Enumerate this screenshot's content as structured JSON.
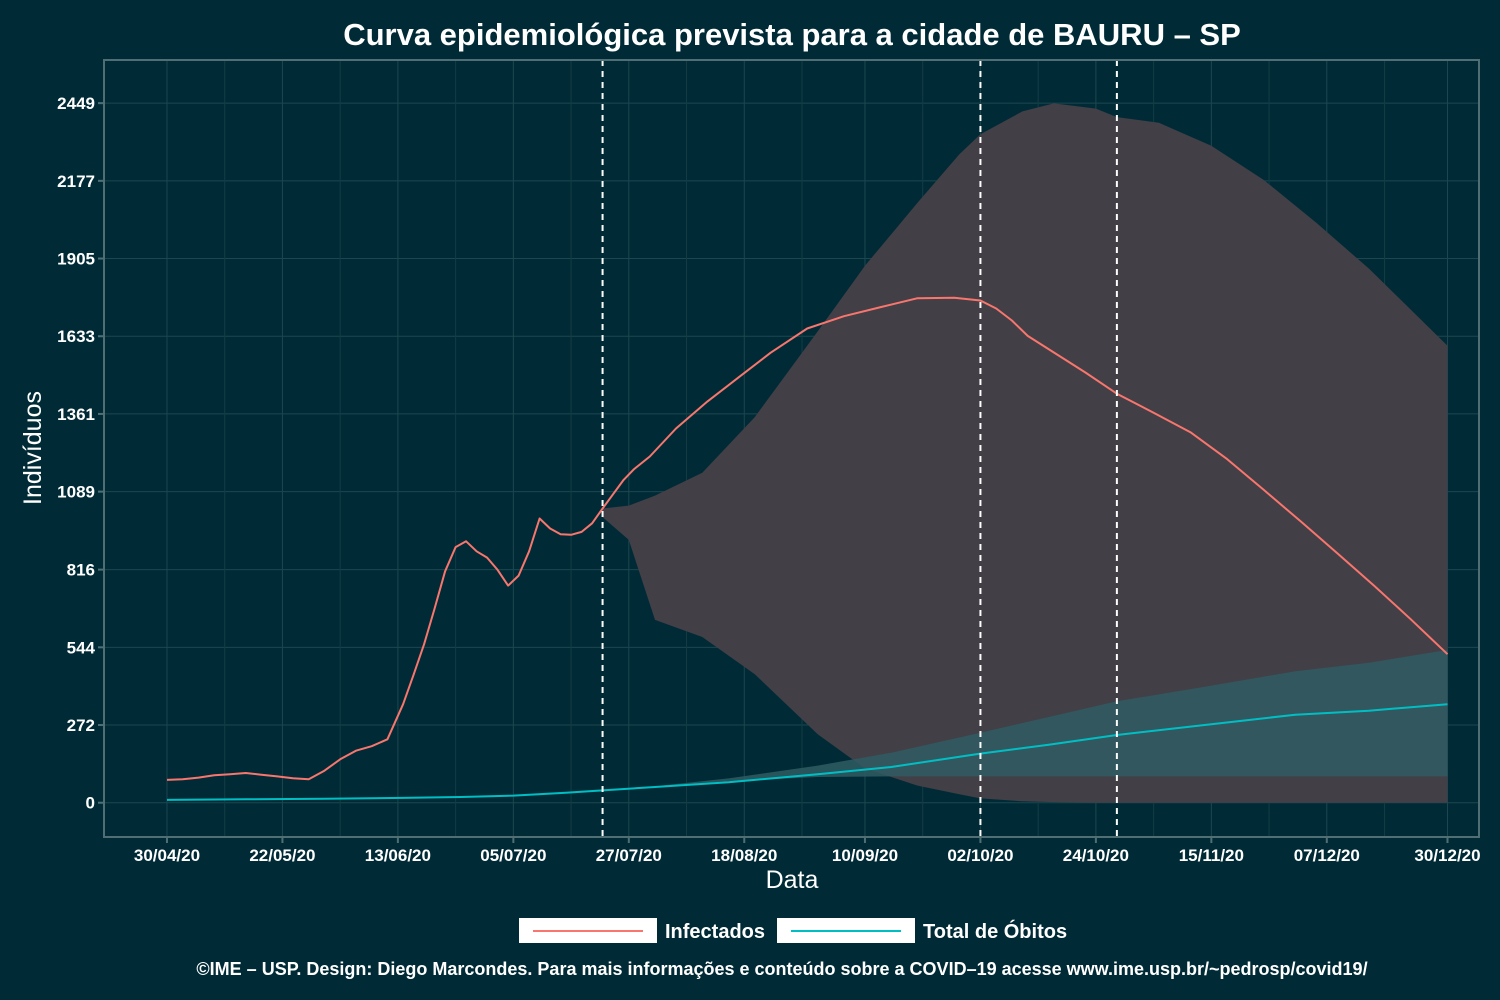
{
  "chart_data": {
    "type": "line",
    "title": "Curva epidemiológica prevista para a cidade de BAURU – SP",
    "xlabel": "Data",
    "ylabel": "Indivíduos",
    "x_start": "2020-04-30",
    "x_range": [
      "2020-04-18",
      "2021-01-05"
    ],
    "ylim": [
      -120,
      2600
    ],
    "y_ticks": [
      0,
      272,
      544,
      816,
      1089,
      1361,
      1633,
      1905,
      2177,
      2449
    ],
    "y_tick_labels": [
      "0",
      "272",
      "544",
      "816",
      "1089",
      "1361",
      "1633",
      "1905",
      "2177",
      "2449"
    ],
    "x_ticks": [
      "2020-04-30",
      "2020-05-22",
      "2020-06-13",
      "2020-07-05",
      "2020-07-27",
      "2020-08-18",
      "2020-09-10",
      "2020-10-02",
      "2020-10-24",
      "2020-11-15",
      "2020-12-07",
      "2020-12-30"
    ],
    "x_tick_labels": [
      "30/04/20",
      "22/05/20",
      "13/06/20",
      "05/07/20",
      "27/07/20",
      "18/08/20",
      "10/09/20",
      "02/10/20",
      "24/10/20",
      "15/11/20",
      "07/12/20",
      "30/12/20"
    ],
    "vlines": [
      "2020-07-22",
      "2020-10-02",
      "2020-10-28"
    ],
    "grid": true,
    "legend_position": "bottom",
    "legend": [
      "Infectados",
      "Total de Óbitos"
    ],
    "caption": "©IME – USP. Design: Diego Marcondes. Para mais informações e conteúdo sobre a COVID–19 acesse www.ime.usp.br/~pedrosp/covid19/",
    "colors": {
      "background": "#002b36",
      "infectados": "#f8766d",
      "obitos": "#00bfc4",
      "band_infectados": "#423f47",
      "band_obitos": "#2f5c63",
      "vline": "#ffffff"
    },
    "series": [
      {
        "name": "Infectados",
        "x": [
          "2020-04-30",
          "2020-05-03",
          "2020-05-06",
          "2020-05-09",
          "2020-05-12",
          "2020-05-15",
          "2020-05-18",
          "2020-05-21",
          "2020-05-24",
          "2020-05-27",
          "2020-05-30",
          "2020-06-02",
          "2020-06-05",
          "2020-06-08",
          "2020-06-11",
          "2020-06-14",
          "2020-06-16",
          "2020-06-18",
          "2020-06-20",
          "2020-06-22",
          "2020-06-24",
          "2020-06-26",
          "2020-06-28",
          "2020-06-30",
          "2020-07-02",
          "2020-07-04",
          "2020-07-06",
          "2020-07-08",
          "2020-07-10",
          "2020-07-12",
          "2020-07-14",
          "2020-07-16",
          "2020-07-18",
          "2020-07-20",
          "2020-07-22",
          "2020-07-24",
          "2020-07-26",
          "2020-07-28",
          "2020-07-31",
          "2020-08-05",
          "2020-08-11",
          "2020-08-17",
          "2020-08-23",
          "2020-08-30",
          "2020-09-06",
          "2020-09-13",
          "2020-09-20",
          "2020-09-27",
          "2020-10-02",
          "2020-10-05",
          "2020-10-08",
          "2020-10-11",
          "2020-10-16",
          "2020-10-22",
          "2020-10-28",
          "2020-11-04",
          "2020-11-11",
          "2020-11-18",
          "2020-11-25",
          "2020-12-02",
          "2020-12-09",
          "2020-12-16",
          "2020-12-23",
          "2020-12-30"
        ],
        "values": [
          80,
          82,
          88,
          96,
          100,
          104,
          98,
          92,
          86,
          82,
          112,
          152,
          182,
          198,
          222,
          345,
          448,
          555,
          680,
          810,
          895,
          915,
          880,
          858,
          815,
          760,
          795,
          880,
          995,
          960,
          940,
          938,
          948,
          978,
          1030,
          1080,
          1130,
          1168,
          1212,
          1310,
          1405,
          1490,
          1575,
          1660,
          1703,
          1735,
          1766,
          1768,
          1758,
          1730,
          1688,
          1634,
          1576,
          1506,
          1432,
          1365,
          1297,
          1203,
          1095,
          985,
          873,
          760,
          642,
          520
        ]
      },
      {
        "name": "Total de Óbitos",
        "x": [
          "2020-04-30",
          "2020-05-15",
          "2020-05-30",
          "2020-06-14",
          "2020-06-25",
          "2020-07-05",
          "2020-07-15",
          "2020-07-22",
          "2020-08-01",
          "2020-08-15",
          "2020-09-01",
          "2020-09-15",
          "2020-10-02",
          "2020-10-15",
          "2020-10-28",
          "2020-11-15",
          "2020-12-01",
          "2020-12-15",
          "2020-12-30"
        ],
        "values": [
          10,
          12,
          14,
          17,
          20,
          25,
          35,
          43,
          55,
          72,
          100,
          125,
          172,
          203,
          237,
          275,
          308,
          322,
          345
        ]
      }
    ],
    "bands": [
      {
        "name": "Infectados",
        "x": [
          "2020-07-22",
          "2020-07-27",
          "2020-08-01",
          "2020-08-10",
          "2020-08-20",
          "2020-09-01",
          "2020-09-10",
          "2020-09-20",
          "2020-09-28",
          "2020-10-02",
          "2020-10-10",
          "2020-10-16",
          "2020-10-24",
          "2020-10-28",
          "2020-11-05",
          "2020-11-15",
          "2020-11-25",
          "2020-12-05",
          "2020-12-15",
          "2020-12-30"
        ],
        "upper": [
          1030,
          1040,
          1075,
          1155,
          1350,
          1650,
          1880,
          2100,
          2270,
          2340,
          2420,
          2448,
          2430,
          2400,
          2380,
          2300,
          2180,
          2030,
          1870,
          1600
        ],
        "lower": [
          1000,
          920,
          640,
          580,
          450,
          240,
          120,
          60,
          30,
          15,
          5,
          2,
          0,
          0,
          0,
          0,
          0,
          0,
          0,
          0
        ]
      },
      {
        "name": "Total de Óbitos",
        "x": [
          "2020-07-22",
          "2020-08-01",
          "2020-08-15",
          "2020-09-01",
          "2020-09-15",
          "2020-10-02",
          "2020-10-15",
          "2020-10-28",
          "2020-11-15",
          "2020-12-01",
          "2020-12-15",
          "2020-12-30"
        ],
        "upper": [
          43,
          58,
          85,
          130,
          175,
          245,
          300,
          355,
          410,
          460,
          490,
          535
        ],
        "lower": [
          43,
          58,
          75,
          90,
          92,
          92,
          92,
          92,
          92,
          92,
          92,
          92
        ]
      }
    ]
  }
}
